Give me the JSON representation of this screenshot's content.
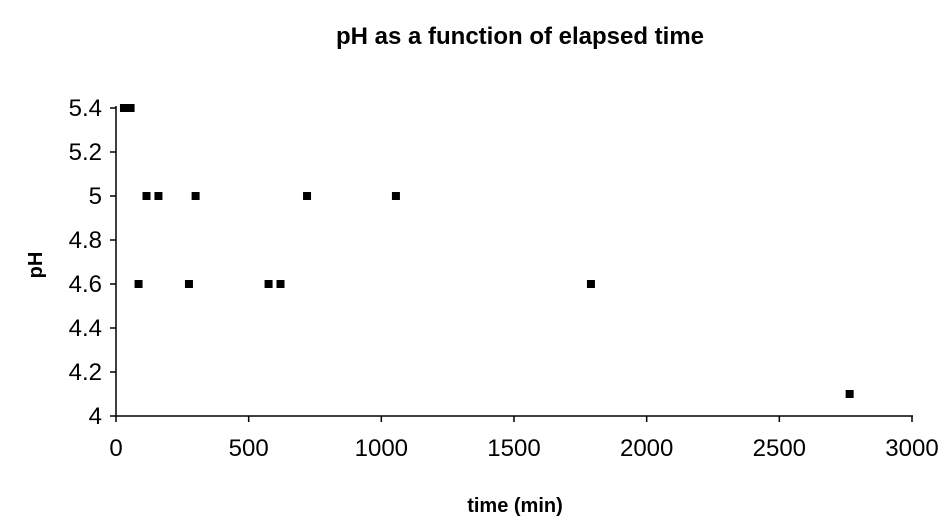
{
  "chart_data": {
    "type": "scatter",
    "title": "pH as a function of elapsed time",
    "xlabel": "time (min)",
    "ylabel": "pH",
    "xlim": [
      0,
      3000
    ],
    "ylim": [
      4,
      5.4
    ],
    "xticks": [
      "0",
      "500",
      "1000",
      "1500",
      "2000",
      "2500",
      "3000"
    ],
    "yticks": [
      "4",
      "4.2",
      "4.4",
      "4.6",
      "4.8",
      "5",
      "5.2",
      "5.4"
    ],
    "grid": false,
    "legend": "none",
    "marker": "square",
    "marker_color": "#000000",
    "series": [
      {
        "points": [
          {
            "x": 30,
            "y": 5.4
          },
          {
            "x": 55,
            "y": 5.4
          },
          {
            "x": 85,
            "y": 4.6
          },
          {
            "x": 115,
            "y": 5.0
          },
          {
            "x": 160,
            "y": 5.0
          },
          {
            "x": 275,
            "y": 4.6
          },
          {
            "x": 300,
            "y": 5.0
          },
          {
            "x": 575,
            "y": 4.6
          },
          {
            "x": 620,
            "y": 4.6
          },
          {
            "x": 720,
            "y": 5.0
          },
          {
            "x": 1055,
            "y": 5.0
          },
          {
            "x": 1790,
            "y": 4.6
          },
          {
            "x": 2765,
            "y": 4.1
          }
        ]
      }
    ]
  }
}
